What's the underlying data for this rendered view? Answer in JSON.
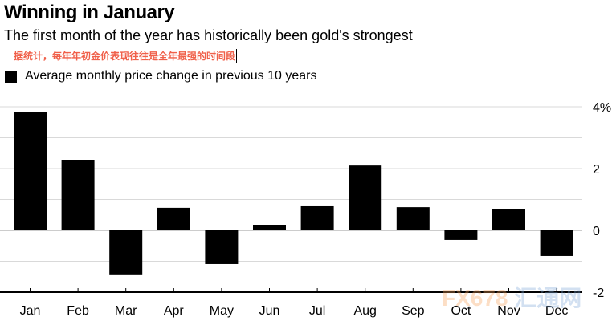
{
  "header": {
    "title": "Winning in January",
    "subtitle": "The first month of the year has historically been gold's strongest",
    "note": "据统计，每年年初金价表现往往是全年最强的时间段"
  },
  "watermark": "FX678 汇通网",
  "chart_data": {
    "type": "bar",
    "title": "Winning in January",
    "legend": [
      "Average monthly price change in previous 10 years"
    ],
    "legend_placement": "top-left",
    "categories": [
      "Jan",
      "Feb",
      "Mar",
      "Apr",
      "May",
      "Jun",
      "Jul",
      "Aug",
      "Sep",
      "Oct",
      "Nov",
      "Dec"
    ],
    "values": [
      3.84,
      2.26,
      -1.45,
      0.73,
      -1.09,
      0.18,
      0.78,
      2.1,
      0.75,
      -0.31,
      0.68,
      -0.83
    ],
    "ylim": [
      -2,
      4
    ],
    "yticks": [
      4,
      2,
      0,
      -2
    ],
    "ytick_labels": [
      "4%",
      "2",
      "0",
      "-2"
    ],
    "grid": true,
    "xlabel": "",
    "ylabel": "",
    "colors": {
      "bar": "#000000",
      "grid": "#d9d9d9",
      "note": "#f0604a"
    }
  }
}
